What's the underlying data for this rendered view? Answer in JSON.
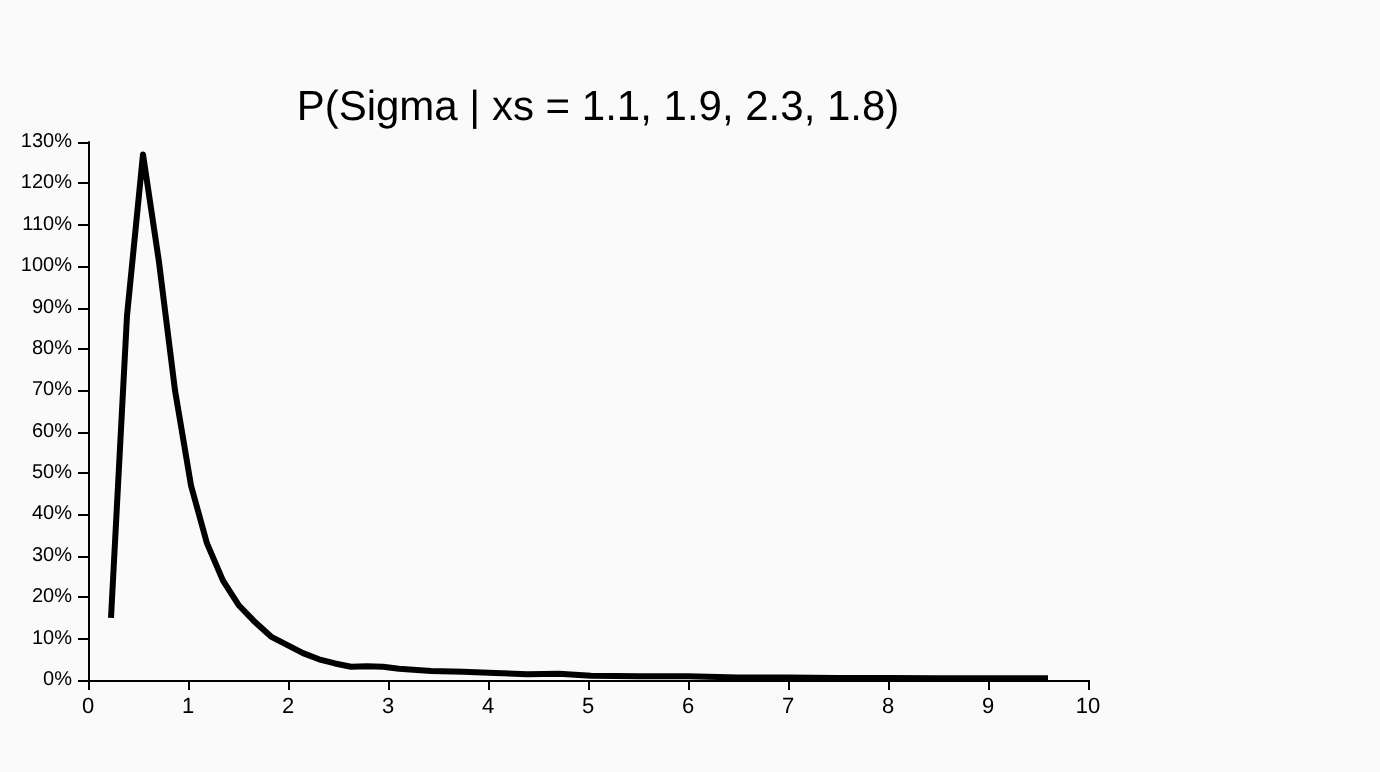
{
  "chart_data": {
    "type": "line",
    "title": "P(Sigma | xs = 1.1, 1.9, 2.3, 1.8)",
    "x": [
      0.23,
      0.39,
      0.55,
      0.71,
      0.87,
      1.03,
      1.19,
      1.35,
      1.51,
      1.67,
      1.83,
      1.99,
      2.15,
      2.31,
      2.47,
      2.63,
      2.79,
      2.95,
      3.11,
      3.43,
      3.75,
      4.07,
      4.39,
      4.71,
      5.03,
      5.5,
      6.0,
      6.5,
      7.0,
      7.5,
      8.0,
      8.5,
      9.0,
      9.6
    ],
    "series": [
      {
        "color": "#000000",
        "values": [
          15,
          88,
          127,
          101,
          70,
          47,
          33,
          24,
          18,
          14,
          10.5,
          8.5,
          6.5,
          5,
          4,
          3.2,
          3.3,
          3.2,
          2.7,
          2.2,
          2,
          1.7,
          1.4,
          1.5,
          1,
          0.9,
          0.9,
          0.6,
          0.6,
          0.5,
          0.5,
          0.4,
          0.4,
          0.4
        ]
      }
    ],
    "xlim": [
      0,
      10
    ],
    "xticks": [
      0,
      1,
      2,
      3,
      4,
      5,
      6,
      7,
      8,
      9,
      10
    ],
    "ylim": [
      0,
      130
    ],
    "yticks": [
      {
        "value": 0,
        "label": "0%"
      },
      {
        "value": 10,
        "label": "10%"
      },
      {
        "value": 20,
        "label": "20%"
      },
      {
        "value": 30,
        "label": "30%"
      },
      {
        "value": 40,
        "label": "40%"
      },
      {
        "value": 50,
        "label": "50%"
      },
      {
        "value": 60,
        "label": "60%"
      },
      {
        "value": 70,
        "label": "70%"
      },
      {
        "value": 80,
        "label": "80%"
      },
      {
        "value": 90,
        "label": "90%"
      },
      {
        "value": 100,
        "label": "100%"
      },
      {
        "value": 110,
        "label": "110%"
      },
      {
        "value": 120,
        "label": "120%"
      },
      {
        "value": 130,
        "label": "130%"
      }
    ],
    "grid": false,
    "marker": "none",
    "line_style": "solid"
  }
}
